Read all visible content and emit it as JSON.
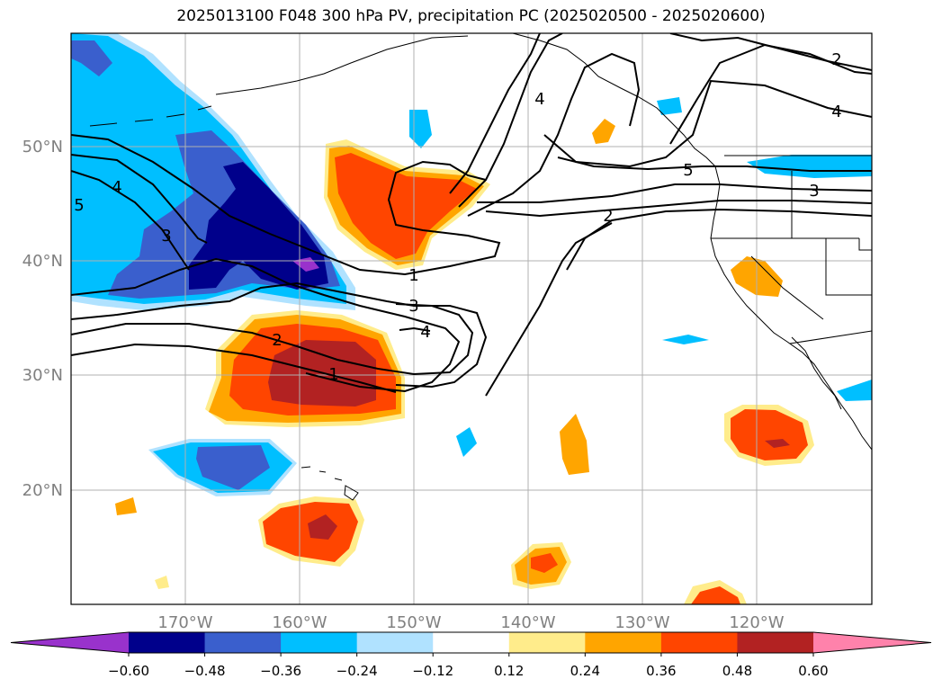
{
  "title": "2025013100 F048 300 hPa PV, precipitation PC (2025020500 - 2025020600)",
  "map": {
    "lon_labels": [
      "170°W",
      "160°W",
      "150°W",
      "140°W",
      "130°W",
      "120°W"
    ],
    "lat_labels": [
      "50°N",
      "40°N",
      "30°N",
      "20°N"
    ],
    "label_color": "#808080",
    "grid_color": "#b0b0b0",
    "pv_contour_labels": {
      "a": "1",
      "b": "3",
      "c": "4",
      "d": "2",
      "e": "1",
      "f": "4",
      "g": "2",
      "h": "5",
      "i": "3",
      "j": "3",
      "k": "4",
      "l": "2",
      "m": "5",
      "n": "4"
    }
  },
  "colorbar": {
    "colors": [
      "#9932cc",
      "#00008b",
      "#3a5fcd",
      "#00bfff",
      "#b0e2ff",
      "#ffffff",
      "#ffec8b",
      "#ffa500",
      "#ff4500",
      "#b22222",
      "#ff82ab"
    ],
    "tick_labels": [
      "−0.60",
      "−0.48",
      "−0.36",
      "−0.24",
      "−0.12",
      "0.12",
      "0.24",
      "0.36",
      "0.48",
      "0.60"
    ]
  }
}
